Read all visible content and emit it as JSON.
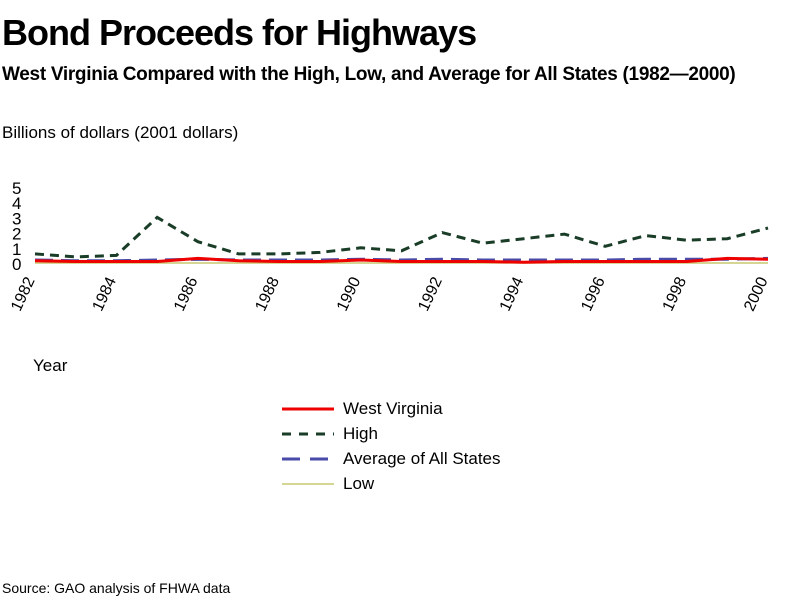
{
  "header": {
    "title": "Bond Proceeds for Highways",
    "subtitle": "West Virginia Compared with the High, Low, and Average for All States (1982—2000)"
  },
  "footer": {
    "source": "Source: GAO analysis of FHWA data"
  },
  "chart_data": {
    "type": "line",
    "title": "Bond Proceeds for Highways",
    "subtitle": "West Virginia Compared with the High, Low, and Average for All States (1982—2000)",
    "ylabel": "Billions of dollars (2001 dollars)",
    "xlabel": "Year",
    "ylim": [
      0,
      5
    ],
    "yticks": [
      "0",
      "1",
      "2",
      "3",
      "4",
      "5"
    ],
    "xticks": [
      "1982",
      "1984",
      "1986",
      "1988",
      "1990",
      "1992",
      "1994",
      "1996",
      "1998",
      "2000"
    ],
    "x": [
      1982,
      1983,
      1984,
      1985,
      1986,
      1987,
      1988,
      1989,
      1990,
      1991,
      1992,
      1993,
      1994,
      1995,
      1996,
      1997,
      1998,
      1999,
      2000
    ],
    "grid": false,
    "legend_position": "bottom-center",
    "series": [
      {
        "name": "West Virginia",
        "color": "#ee0000",
        "dash": "solid",
        "values": [
          0.15,
          0.1,
          0.1,
          0.1,
          0.3,
          0.15,
          0.1,
          0.1,
          0.2,
          0.1,
          0.1,
          0.1,
          0.05,
          0.1,
          0.1,
          0.1,
          0.1,
          0.3,
          0.25
        ]
      },
      {
        "name": "High",
        "color": "#1a3d28",
        "dash": "dashed",
        "values": [
          0.6,
          0.4,
          0.5,
          3.0,
          1.4,
          0.6,
          0.6,
          0.7,
          1.0,
          0.8,
          2.0,
          1.3,
          1.6,
          1.9,
          1.1,
          1.8,
          1.5,
          1.6,
          2.3
        ]
      },
      {
        "name": "Average of All States",
        "color": "#4a4aa8",
        "dash": "longdash",
        "values": [
          0.2,
          0.15,
          0.15,
          0.2,
          0.25,
          0.2,
          0.2,
          0.2,
          0.25,
          0.2,
          0.25,
          0.2,
          0.2,
          0.2,
          0.2,
          0.25,
          0.25,
          0.25,
          0.3
        ]
      },
      {
        "name": "Low",
        "color": "#c8c870",
        "dash": "solid",
        "values": [
          0,
          0,
          0,
          0,
          0,
          0,
          0,
          0,
          0,
          0,
          0,
          0,
          0,
          0,
          0,
          0,
          0,
          0,
          0
        ]
      }
    ]
  }
}
